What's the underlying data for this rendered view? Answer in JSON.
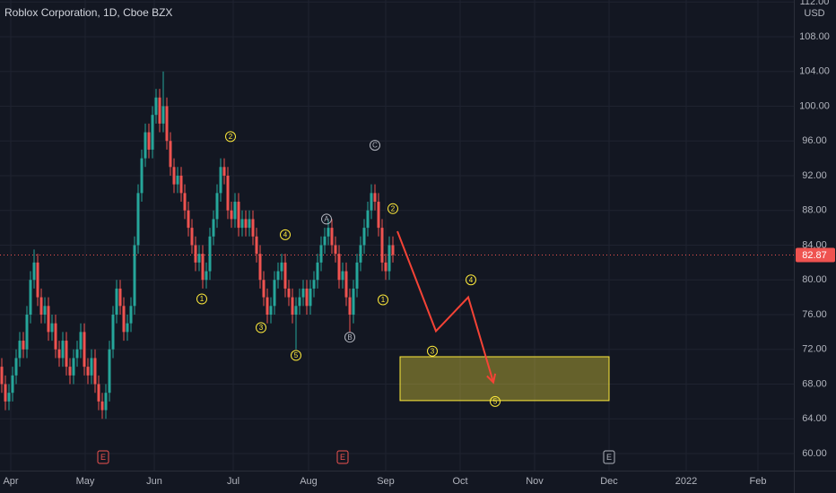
{
  "chart_data": {
    "type": "candlestick",
    "title": "Roblox Corporation, 1D, Cboe BZX",
    "currency": "USD",
    "x": [
      1,
      2,
      3,
      4,
      5,
      6,
      7,
      8,
      9,
      10,
      11,
      12,
      13,
      14,
      15,
      16,
      17,
      18,
      19,
      20,
      21,
      22,
      23,
      24,
      25,
      26,
      27,
      28,
      29,
      30,
      31,
      32,
      33,
      34,
      35,
      36,
      37,
      38,
      39,
      40,
      41,
      42,
      43,
      44,
      45,
      46,
      47,
      48,
      49,
      50,
      51,
      52,
      53,
      54,
      55,
      56,
      57,
      58,
      59,
      60,
      61,
      62,
      63,
      64,
      65,
      66,
      67,
      68,
      69,
      70,
      71,
      72,
      73,
      74,
      75,
      76,
      77,
      78,
      79,
      80,
      81,
      82,
      83,
      84,
      85,
      86,
      87,
      88,
      89,
      90,
      91,
      92,
      93,
      94,
      95,
      96,
      97,
      98,
      99,
      100,
      101,
      102,
      103,
      104,
      105,
      106,
      107,
      108,
      109,
      110
    ],
    "open": [
      70,
      68,
      66,
      67,
      69,
      71,
      73,
      72,
      76,
      80,
      82,
      78,
      76,
      77,
      74,
      75,
      72,
      71,
      73,
      70,
      69,
      71,
      72,
      74,
      70,
      69,
      71,
      68,
      66,
      65,
      67,
      72,
      76,
      79,
      77,
      74,
      75,
      77,
      84,
      90,
      94,
      97,
      95,
      99,
      101,
      98,
      100,
      96,
      93,
      91,
      92,
      90,
      88,
      86,
      84,
      82,
      83,
      80,
      81,
      85,
      87,
      90,
      93,
      92,
      88,
      87,
      89,
      86,
      87,
      86,
      87,
      85,
      83,
      80,
      78,
      76,
      77,
      80,
      81,
      82,
      79,
      78,
      76,
      77,
      78,
      79,
      77,
      79,
      80,
      82,
      84,
      85,
      86,
      84,
      83,
      80,
      81,
      78,
      76,
      79,
      82,
      84,
      86,
      88,
      90,
      89,
      86,
      82,
      81,
      84
    ],
    "high": [
      71,
      69,
      68,
      70,
      72,
      74,
      74,
      77,
      81,
      83.5,
      83,
      79,
      78,
      78,
      76,
      76,
      73,
      74,
      74,
      71,
      72,
      73,
      75,
      75,
      71,
      72,
      72,
      69,
      67,
      68,
      73,
      77,
      80,
      80,
      78,
      76,
      78,
      85,
      91,
      95,
      98,
      98,
      100,
      102,
      102,
      104,
      101,
      97,
      94,
      93,
      93,
      91,
      89,
      87,
      85,
      84,
      84,
      82,
      86,
      88,
      91,
      94,
      94,
      93,
      89,
      90,
      90,
      88,
      88,
      88,
      88,
      86,
      84,
      81,
      79,
      78,
      81,
      82,
      83,
      83,
      80,
      79,
      78,
      79,
      80,
      80,
      80,
      81,
      83,
      85,
      86,
      87,
      87,
      85,
      84,
      82,
      82,
      79,
      80,
      83,
      85,
      87,
      89,
      91,
      91,
      90,
      87,
      83,
      85,
      85
    ],
    "low": [
      67,
      65,
      65,
      66,
      68,
      70,
      71,
      71,
      75,
      79,
      77,
      75,
      75,
      73,
      73,
      71,
      70,
      70,
      69,
      68,
      68,
      70,
      71,
      69,
      68,
      68,
      67,
      65,
      64,
      64,
      66,
      71,
      75,
      76,
      73,
      73,
      74,
      76,
      83,
      89,
      93,
      94,
      94,
      98,
      97,
      97,
      95,
      92,
      90,
      90,
      89,
      87,
      85,
      83,
      81,
      81,
      79,
      79,
      80,
      84,
      86,
      89,
      91,
      87,
      86,
      86,
      85,
      85,
      85,
      85,
      84,
      82,
      79,
      77,
      75,
      75,
      76,
      79,
      80,
      78,
      77,
      75,
      72,
      76,
      77,
      76,
      76,
      78,
      79,
      81,
      83,
      84,
      83,
      82,
      79,
      79,
      77,
      74,
      75,
      78,
      81,
      83,
      85,
      87,
      88,
      85,
      81,
      80,
      80,
      82
    ],
    "close": [
      68,
      66,
      67,
      69,
      71,
      73,
      72,
      76,
      80,
      82,
      78,
      76,
      77,
      74,
      75,
      72,
      71,
      73,
      70,
      69,
      71,
      72,
      74,
      70,
      69,
      71,
      68,
      66,
      65,
      67,
      72,
      76,
      79,
      77,
      74,
      75,
      77,
      84,
      90,
      94,
      97,
      95,
      99,
      101,
      98,
      100,
      96,
      93,
      91,
      92,
      90,
      88,
      86,
      84,
      82,
      83,
      80,
      81,
      85,
      87,
      90,
      93,
      92,
      88,
      87,
      89,
      86,
      87,
      86,
      87,
      85,
      83,
      80,
      78,
      76,
      77,
      80,
      81,
      82,
      79,
      78,
      76,
      77,
      78,
      79,
      77,
      79,
      80,
      82,
      84,
      85,
      86,
      84,
      83,
      80,
      81,
      78,
      76,
      79,
      82,
      84,
      86,
      88,
      90,
      89,
      86,
      82,
      81,
      84,
      82.87
    ],
    "up_color": "#26a69a",
    "down_color": "#ef5350",
    "xlim": [
      0.5,
      221.75
    ],
    "ylim": [
      58.04,
      112.23
    ],
    "xticks": [
      {
        "value": 3.5,
        "label": "Apr"
      },
      {
        "value": 24.25,
        "label": "May"
      },
      {
        "value": 43.5,
        "label": "Jun"
      },
      {
        "value": 65.5,
        "label": "Jul"
      },
      {
        "value": 86.5,
        "label": "Aug"
      },
      {
        "value": 108,
        "label": "Sep"
      },
      {
        "value": 128.75,
        "label": "Oct"
      },
      {
        "value": 149.5,
        "label": "Nov"
      },
      {
        "value": 170.25,
        "label": "Dec"
      },
      {
        "value": 191.75,
        "label": "2022"
      },
      {
        "value": 211.75,
        "label": "Feb"
      }
    ],
    "yticks": [
      {
        "value": 60,
        "label": "60.00"
      },
      {
        "value": 64,
        "label": "64.00"
      },
      {
        "value": 68,
        "label": "68.00"
      },
      {
        "value": 72,
        "label": "72.00"
      },
      {
        "value": 76,
        "label": "76.00"
      },
      {
        "value": 80,
        "label": "80.00"
      },
      {
        "value": 84,
        "label": "84.00"
      },
      {
        "value": 88,
        "label": "88.00"
      },
      {
        "value": 92,
        "label": "92.00"
      },
      {
        "value": 96,
        "label": "96.00"
      },
      {
        "value": 100,
        "label": "100.00"
      },
      {
        "value": 104,
        "label": "104.00"
      },
      {
        "value": 108,
        "label": "108.00"
      },
      {
        "value": 112,
        "label": "112.00"
      }
    ],
    "grid": true,
    "last_price": 82.87,
    "last_price_color": "#ef5350",
    "annotations": [
      {
        "label": "2",
        "x": 64.75,
        "y": 96.5,
        "color": "#ffeb3b"
      },
      {
        "label": "C",
        "x": 105,
        "y": 95.5,
        "color": "#b2b5be"
      },
      {
        "label": "2",
        "x": 110,
        "y": 88.2,
        "color": "#ffeb3b"
      },
      {
        "label": "A",
        "x": 91.5,
        "y": 87,
        "color": "#b2b5be"
      },
      {
        "label": "4",
        "x": 80,
        "y": 85.2,
        "color": "#ffeb3b"
      },
      {
        "label": "1",
        "x": 56.75,
        "y": 77.8,
        "color": "#ffeb3b"
      },
      {
        "label": "1",
        "x": 107.25,
        "y": 77.7,
        "color": "#ffeb3b"
      },
      {
        "label": "3",
        "x": 73.25,
        "y": 74.5,
        "color": "#ffeb3b"
      },
      {
        "label": "B",
        "x": 98,
        "y": 73.4,
        "color": "#b2b5be"
      },
      {
        "label": "5",
        "x": 83,
        "y": 71.3,
        "color": "#ffeb3b"
      },
      {
        "label": "4",
        "x": 131.75,
        "y": 80,
        "color": "#ffeb3b"
      },
      {
        "label": "3",
        "x": 121,
        "y": 71.8,
        "color": "#ffeb3b"
      },
      {
        "label": "5",
        "x": 138.5,
        "y": 66,
        "color": "#ffeb3b"
      }
    ],
    "arrow": {
      "x": [
        111.25,
        122,
        131,
        138
      ],
      "y": [
        85.6,
        74.1,
        78,
        68.2
      ],
      "color": "#f44336"
    },
    "target_zone": {
      "x": [
        112,
        170.25
      ],
      "y": [
        66.1,
        71.15
      ],
      "color": "#ffeb3b"
    },
    "earnings": [
      {
        "x": 29.25,
        "label": "E",
        "color": "#ef5350"
      },
      {
        "x": 96,
        "label": "E",
        "color": "#ef5350"
      },
      {
        "x": 170.25,
        "label": "E",
        "color": "#b2b5be"
      }
    ]
  }
}
